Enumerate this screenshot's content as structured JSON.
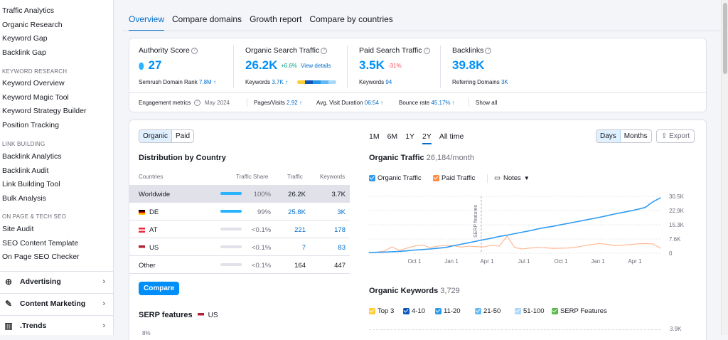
{
  "sidebar": {
    "items_top": [
      "Traffic Analytics",
      "Organic Research",
      "Keyword Gap",
      "Backlink Gap"
    ],
    "kw_head": "KEYWORD RESEARCH",
    "kw_items": [
      "Keyword Overview",
      "Keyword Magic Tool",
      "Keyword Strategy Builder",
      "Position Tracking"
    ],
    "lb_head": "LINK BUILDING",
    "lb_items": [
      "Backlink Analytics",
      "Backlink Audit",
      "Link Building Tool",
      "Bulk Analysis"
    ],
    "op_head": "ON PAGE & TECH SEO",
    "op_items": [
      "Site Audit",
      "SEO Content Template",
      "On Page SEO Checker"
    ],
    "cats": [
      {
        "label": "Advertising",
        "icon": "target-icon"
      },
      {
        "label": "Content Marketing",
        "icon": "pen-icon"
      },
      {
        "label": ".Trends",
        "icon": "bar-chart-icon"
      }
    ]
  },
  "tabs": [
    "Overview",
    "Compare domains",
    "Growth report",
    "Compare by countries"
  ],
  "metrics": {
    "authority": {
      "label": "Authority Score",
      "value": "27",
      "sub_label": "Semrush Domain Rank",
      "sub_value": "7.8M"
    },
    "organic": {
      "label": "Organic Search Traffic",
      "value": "26.2K",
      "change": "+6.6%",
      "link": "View details",
      "sub_label": "Keywords",
      "sub_value": "3.7K"
    },
    "paid": {
      "label": "Paid Search Traffic",
      "value": "3.5K",
      "change": "-31%",
      "sub_label": "Keywords",
      "sub_value": "94"
    },
    "backlinks": {
      "label": "Backlinks",
      "value": "39.8K",
      "sub_label": "Referring Domains",
      "sub_value": "3K"
    }
  },
  "engagement": {
    "label": "Engagement metrics",
    "date": "May 2024",
    "pages_label": "Pages/Visits",
    "pages_value": "2.92",
    "duration_label": "Avg. Visit Duration",
    "duration_value": "06:54",
    "bounce_label": "Bounce rate",
    "bounce_value": "45.17%",
    "show_all": "Show all"
  },
  "distribution": {
    "toggle": [
      "Organic",
      "Paid"
    ],
    "title": "Distribution by Country",
    "headers": [
      "Countries",
      "Traffic Share",
      "Traffic",
      "Keywords"
    ],
    "rows": [
      {
        "country": "Worldwide",
        "flag": "",
        "share": "100%",
        "share_frac": 1.0,
        "traffic": "26.2K",
        "keywords": "3.7K"
      },
      {
        "country": "DE",
        "flag": "de",
        "share": "99%",
        "share_frac": 0.99,
        "traffic": "25.8K",
        "keywords": "3K"
      },
      {
        "country": "AT",
        "flag": "at",
        "share": "<0.1%",
        "share_frac": 0.0,
        "traffic": "221",
        "keywords": "178"
      },
      {
        "country": "US",
        "flag": "us",
        "share": "<0.1%",
        "share_frac": 0.0,
        "traffic": "7",
        "keywords": "83"
      },
      {
        "country": "Other",
        "flag": "",
        "share": "<0.1%",
        "share_frac": 0.0,
        "traffic": "164",
        "keywords": "447"
      }
    ],
    "compare_button": "Compare",
    "serp_title": "SERP features",
    "serp_country": "US",
    "serp_axis": "8%"
  },
  "chart_controls": {
    "ranges": [
      "1M",
      "6M",
      "1Y",
      "2Y",
      "All time"
    ],
    "active_range": "2Y",
    "units": [
      "Days",
      "Months"
    ],
    "export": "Export"
  },
  "organic_traffic": {
    "title": "Organic Traffic",
    "subtitle": "26,184/month",
    "legend": [
      "Organic Traffic",
      "Paid Traffic"
    ],
    "notes": "Notes",
    "annotation": "SERP features",
    "colors": {
      "organic": "#2f9bf0",
      "paid": "#ffb38a"
    }
  },
  "chart_data": {
    "type": "line",
    "title": "Organic Traffic",
    "x_ticks": [
      "Oct 1",
      "Jan 1",
      "Apr 1",
      "Jul 1",
      "Oct 1",
      "Jan 1",
      "Apr 1"
    ],
    "y_ticks": [
      "30.5K",
      "22.9K",
      "15.3K",
      "7.6K",
      "0"
    ],
    "ylim": [
      0,
      30500
    ],
    "series": [
      {
        "name": "Organic Traffic",
        "values": [
          400,
          500,
          600,
          800,
          1000,
          1300,
          1700,
          2000,
          2300,
          2700,
          3100,
          4000,
          4800,
          5600,
          6500,
          7300,
          8100,
          9000,
          9700,
          10500,
          11300,
          12100,
          13000,
          13800,
          14400,
          15300,
          16000,
          16800,
          17600,
          18400,
          19200,
          20100,
          21000,
          21800,
          22600,
          23500,
          24500,
          27500,
          29700
        ]
      },
      {
        "name": "Paid Traffic",
        "values": [
          300,
          600,
          1200,
          3400,
          1500,
          2800,
          3900,
          4400,
          3000,
          3800,
          4200,
          4000,
          3300,
          3800,
          3500,
          3400,
          4300,
          3800,
          9100,
          3000,
          2300,
          2800,
          3000,
          2900,
          2600,
          2700,
          2800,
          3200,
          4000,
          4600,
          5200,
          4800,
          4100,
          4300,
          4600,
          5000,
          5200,
          5000,
          2700
        ]
      }
    ]
  },
  "organic_keywords": {
    "title": "Organic Keywords",
    "count": "3,729",
    "legend": [
      {
        "label": "Top 3",
        "color": "#ffcc33"
      },
      {
        "label": "4-10",
        "color": "#0b56b8"
      },
      {
        "label": "11-20",
        "color": "#2798e8"
      },
      {
        "label": "21-50",
        "color": "#63b9f5"
      },
      {
        "label": "51-100",
        "color": "#a8d8fb"
      },
      {
        "label": "SERP Features",
        "color": "#59b945"
      }
    ],
    "axis_top": "3.9K"
  }
}
